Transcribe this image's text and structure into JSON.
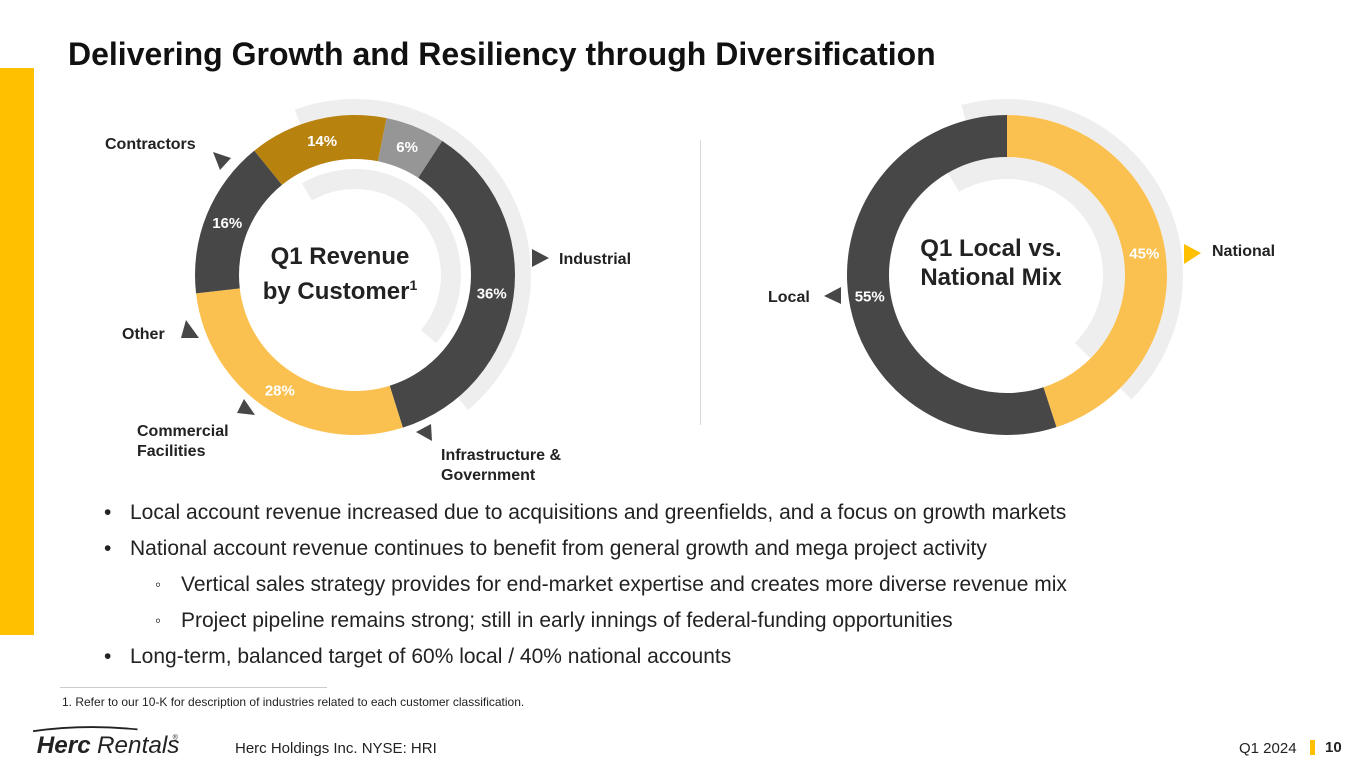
{
  "title": "Delivering Growth and Resiliency through Diversification",
  "chart_data": [
    {
      "type": "pie",
      "title": "Q1 Revenue by Customer",
      "title_lines": [
        "Q1 Revenue",
        "by Customer"
      ],
      "title_footnote_marker": "1",
      "categories": [
        "Contractors",
        "Industrial",
        "Infrastructure & Government",
        "Commercial Facilities",
        "Other"
      ],
      "values": [
        36,
        28,
        16,
        14,
        6
      ],
      "value_labels": [
        "36%",
        "28%",
        "16%",
        "14%",
        "6%"
      ],
      "colors": [
        "#474747",
        "#FAC151",
        "#474747",
        "#B8820F",
        "#969696"
      ]
    },
    {
      "type": "pie",
      "title": "Q1 Local vs. National Mix",
      "title_lines": [
        "Q1 Local vs.",
        "National Mix"
      ],
      "categories": [
        "National",
        "Local"
      ],
      "values": [
        45,
        55
      ],
      "value_labels": [
        "45%",
        "55%"
      ],
      "colors": [
        "#FAC151",
        "#474747"
      ]
    }
  ],
  "labels": {
    "contractors": "Contractors",
    "industrial": "Industrial",
    "other": "Other",
    "commercial_line1": "Commercial",
    "commercial_line2": "Facilities",
    "infra_line1": "Infrastructure &",
    "infra_line2": "Government",
    "local": "Local",
    "national": "National"
  },
  "bullets": [
    {
      "level": 1,
      "text": "Local account revenue increased due to acquisitions and greenfields, and a focus on growth markets"
    },
    {
      "level": 1,
      "text": "National account revenue continues to benefit from general growth and mega project activity"
    },
    {
      "level": 2,
      "text": "Vertical sales strategy provides for end-market expertise and creates more diverse revenue mix"
    },
    {
      "level": 2,
      "text": "Project pipeline remains strong; still in early innings of federal-funding opportunities"
    },
    {
      "level": 1,
      "text": "Long-term, balanced target of 60% local / 40% national accounts"
    }
  ],
  "bullet_marks": {
    "level1": "•",
    "level2": "◦"
  },
  "footnote": "1. Refer to our 10-K for description of industries related to each customer classification.",
  "footer": {
    "logo_bold": "Herc",
    "logo_light": "Rentals",
    "logo_reg": "®",
    "company": "Herc Holdings Inc.  NYSE: HRI",
    "period": "Q1 2024",
    "page": "10"
  },
  "colors": {
    "accent": "#FFC000",
    "dark": "#474747",
    "gold": "#FAC151",
    "brown": "#B8820F",
    "gray": "#969696",
    "ring": "#EEEEEE"
  }
}
